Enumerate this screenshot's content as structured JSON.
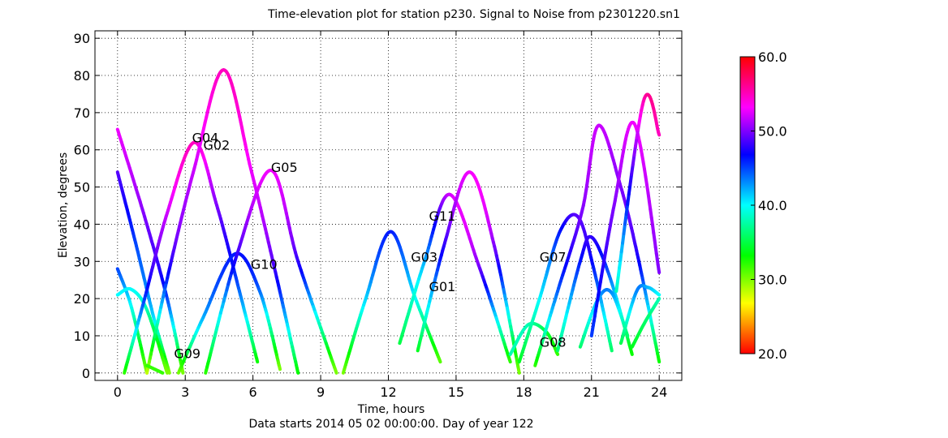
{
  "chart_data": {
    "type": "scatter",
    "title": "Time-elevation plot for station p230.   Signal to Noise from p2301220.sn1",
    "xlabel": "Time, hours",
    "xlabel_sub": "Data starts 2014 05 02 00:00:00.  Day of year 122",
    "ylabel": "Elevation, degrees",
    "xlim": [
      -1,
      25
    ],
    "ylim": [
      -2,
      92
    ],
    "xticks": [
      "0",
      "3",
      "6",
      "9",
      "12",
      "15",
      "18",
      "21",
      "24"
    ],
    "yticks": [
      "0",
      "10",
      "20",
      "30",
      "40",
      "50",
      "60",
      "70",
      "80",
      "90"
    ],
    "grid": true,
    "colorbar": {
      "range": [
        20,
        60
      ],
      "ticks": [
        "20.0",
        "30.0",
        "40.0",
        "50.0",
        "60.0"
      ],
      "colormap": "hsv"
    },
    "satellite_labels": [
      {
        "text": "G04",
        "x": 3.3,
        "y": 62
      },
      {
        "text": "G02",
        "x": 3.8,
        "y": 60
      },
      {
        "text": "G05",
        "x": 6.8,
        "y": 54
      },
      {
        "text": "G10",
        "x": 5.9,
        "y": 28
      },
      {
        "text": "G09",
        "x": 2.5,
        "y": 4
      },
      {
        "text": "G11",
        "x": 13.8,
        "y": 41
      },
      {
        "text": "G03",
        "x": 13.0,
        "y": 30
      },
      {
        "text": "G01",
        "x": 13.8,
        "y": 22
      },
      {
        "text": "G07",
        "x": 18.7,
        "y": 30
      },
      {
        "text": "G08",
        "x": 18.7,
        "y": 7
      }
    ],
    "series": [
      {
        "points": [
          [
            0,
            54
          ],
          [
            0.8,
            35
          ],
          [
            1.6,
            15
          ],
          [
            2.3,
            0
          ]
        ],
        "snr": [
          49,
          45,
          41,
          30
        ]
      },
      {
        "points": [
          [
            0,
            65.5
          ],
          [
            1.2,
            42
          ],
          [
            2.2,
            20
          ],
          [
            2.9,
            0
          ]
        ],
        "snr": [
          53,
          50,
          45,
          30
        ]
      },
      {
        "points": [
          [
            0,
            28
          ],
          [
            0.6,
            18
          ],
          [
            1.3,
            0
          ]
        ],
        "snr": [
          45,
          40,
          30
        ]
      },
      {
        "points": [
          [
            0,
            21
          ],
          [
            0.6,
            22.5
          ],
          [
            1.3,
            17
          ],
          [
            2.2,
            0
          ]
        ],
        "snr": [
          40,
          40,
          38,
          30
        ]
      },
      {
        "points": [
          [
            0.3,
            0
          ],
          [
            1.2,
            20
          ],
          [
            2.2,
            43
          ],
          [
            3.4,
            62
          ],
          [
            4.4,
            45
          ],
          [
            5.4,
            22
          ],
          [
            6.2,
            3
          ]
        ],
        "snr": [
          32,
          45,
          52,
          55,
          50,
          44,
          33
        ]
      },
      {
        "points": [
          [
            1.3,
            0
          ],
          [
            2.3,
            28
          ],
          [
            3.4,
            55
          ],
          [
            4.7,
            81.5
          ],
          [
            5.9,
            55
          ],
          [
            7.0,
            27
          ],
          [
            8.0,
            0
          ]
        ],
        "snr": [
          28,
          47,
          52,
          55,
          53,
          48,
          33
        ]
      },
      {
        "points": [
          [
            1.3,
            2
          ],
          [
            2.0,
            0
          ]
        ],
        "snr": [
          32,
          32
        ]
      },
      {
        "points": [
          [
            2.7,
            0
          ],
          [
            3.8,
            15
          ],
          [
            5.2,
            32
          ],
          [
            6.3,
            22
          ],
          [
            7.2,
            1
          ]
        ],
        "snr": [
          30,
          42,
          46,
          44,
          30
        ]
      },
      {
        "points": [
          [
            3.9,
            0
          ],
          [
            5.3,
            32
          ],
          [
            6.8,
            54.5
          ],
          [
            8.0,
            30
          ],
          [
            9.7,
            0
          ]
        ],
        "snr": [
          32,
          48,
          53,
          48,
          30
        ]
      },
      {
        "points": [
          [
            10,
            0
          ],
          [
            11.0,
            20
          ],
          [
            12.1,
            38
          ],
          [
            13.2,
            20
          ],
          [
            14.3,
            3
          ]
        ],
        "snr": [
          30,
          41,
          46,
          40,
          31
        ]
      },
      {
        "points": [
          [
            12.5,
            8
          ],
          [
            13.6,
            30
          ],
          [
            14.7,
            48
          ],
          [
            16.0,
            29
          ],
          [
            17.4,
            3
          ]
        ],
        "snr": [
          35,
          42,
          52,
          50,
          32
        ]
      },
      {
        "points": [
          [
            13.3,
            6
          ],
          [
            14.5,
            35
          ],
          [
            15.6,
            54
          ],
          [
            16.7,
            34
          ],
          [
            17.8,
            0
          ]
        ],
        "snr": [
          34,
          48,
          53,
          50,
          30
        ]
      },
      {
        "points": [
          [
            17.4,
            5
          ],
          [
            18.2,
            13
          ],
          [
            19.0,
            11
          ],
          [
            19.5,
            5
          ]
        ],
        "snr": [
          38,
          38,
          35,
          32
        ]
      },
      {
        "points": [
          [
            17.8,
            3
          ],
          [
            18.7,
            20
          ],
          [
            19.6,
            38
          ],
          [
            20.4,
            42
          ],
          [
            21.1,
            28
          ],
          [
            21.9,
            6
          ]
        ],
        "snr": [
          34,
          40,
          46,
          49,
          46,
          36
        ]
      },
      {
        "points": [
          [
            18.5,
            2
          ],
          [
            19.5,
            22
          ],
          [
            20.6,
            44
          ],
          [
            21.3,
            66.5
          ],
          [
            22.3,
            50
          ],
          [
            23.1,
            30
          ],
          [
            24,
            3
          ]
        ],
        "snr": [
          32,
          44,
          50,
          52,
          50,
          47,
          33
        ]
      },
      {
        "points": [
          [
            19.5,
            6
          ],
          [
            20.5,
            30
          ],
          [
            21.0,
            36.5
          ],
          [
            21.8,
            26
          ],
          [
            22.8,
            5
          ]
        ],
        "snr": [
          36,
          46,
          48,
          44,
          33
        ]
      },
      {
        "points": [
          [
            20.5,
            7
          ],
          [
            21.3,
            20
          ],
          [
            21.9,
            21.5
          ],
          [
            22.6,
            10
          ]
        ],
        "snr": [
          36,
          42,
          43,
          36
        ]
      },
      {
        "points": [
          [
            21.0,
            10
          ],
          [
            22.0,
            45
          ],
          [
            22.9,
            67
          ],
          [
            24,
            27
          ]
        ],
        "snr": [
          45,
          50,
          53,
          50
        ]
      },
      {
        "points": [
          [
            22.1,
            22
          ],
          [
            23.3,
            73
          ],
          [
            24,
            64
          ]
        ],
        "snr": [
          38,
          55,
          55
        ]
      },
      {
        "points": [
          [
            22.3,
            8
          ],
          [
            23.0,
            22
          ],
          [
            23.5,
            23
          ],
          [
            24,
            21
          ]
        ],
        "snr": [
          35,
          43,
          42,
          40
        ]
      },
      {
        "points": [
          [
            22.8,
            7
          ],
          [
            23.4,
            14
          ],
          [
            24,
            20
          ]
        ],
        "snr": [
          34,
          36,
          38
        ]
      }
    ]
  }
}
